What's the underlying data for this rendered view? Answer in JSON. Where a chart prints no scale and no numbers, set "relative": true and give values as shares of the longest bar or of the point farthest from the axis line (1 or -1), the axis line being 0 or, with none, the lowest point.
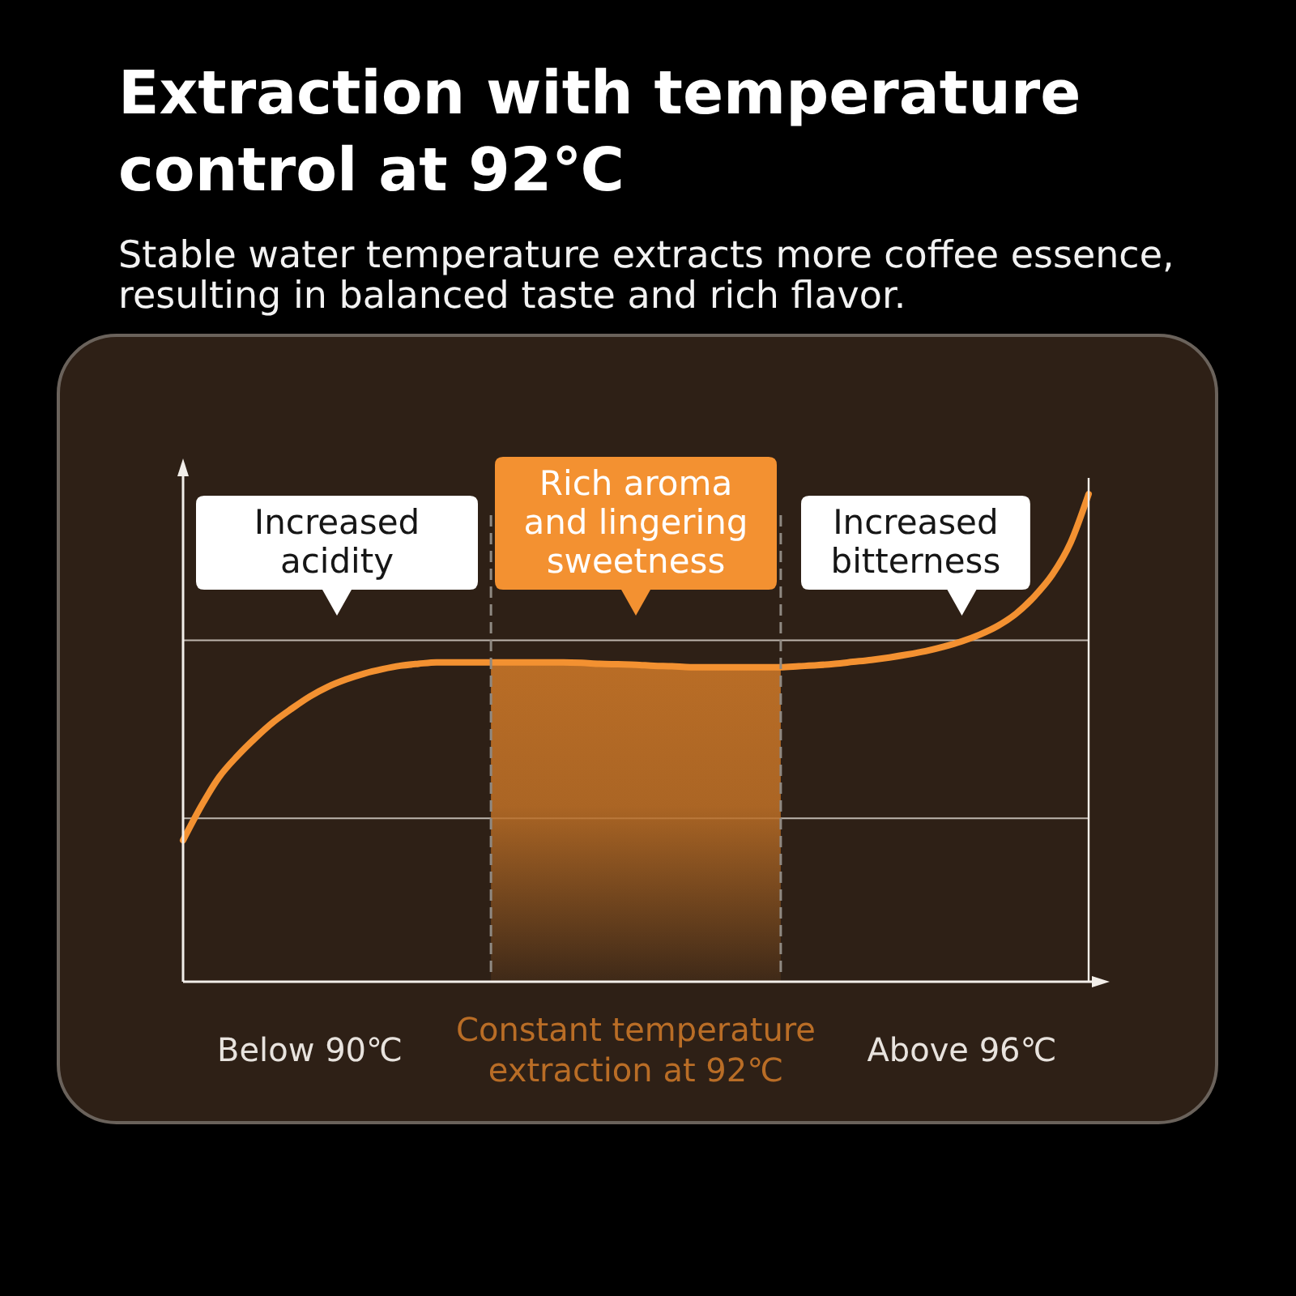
{
  "chart_data": {
    "type": "line",
    "title": "Extraction with temperature\ncontrol at 92℃",
    "subtitle": "Stable water temperature extracts more coffee essence,\nresulting in balanced taste and rich flavor.",
    "relative": true,
    "categories": [
      null,
      null,
      null,
      null,
      null,
      null,
      null,
      "Below 90℃",
      null,
      null,
      null,
      null,
      null,
      null,
      null,
      null,
      null,
      null,
      null,
      null,
      null,
      null,
      null,
      null,
      null,
      "Constant temperature\nextraction at 92℃",
      null,
      null,
      null,
      null,
      null,
      null,
      null,
      null,
      null,
      null,
      null,
      null,
      null,
      null,
      null,
      null,
      null,
      "Above 96℃",
      null,
      null,
      null,
      null,
      null,
      null,
      null
    ],
    "series": [
      {
        "type": "area",
        "color": "#b96d26",
        "values": [
          null,
          null,
          null,
          null,
          null,
          null,
          null,
          null,
          null,
          null,
          null,
          null,
          null,
          null,
          null,
          null,
          null,
          0.655,
          0.655,
          0.655,
          0.655,
          0.655,
          0.654,
          0.652,
          0.651,
          0.65,
          0.648,
          0.647,
          0.645,
          0.645,
          0.645,
          0.645,
          0.645,
          0.645,
          null,
          null,
          null,
          null,
          null,
          null,
          null,
          null,
          null,
          null,
          null,
          null,
          null,
          null,
          null,
          null,
          null
        ]
      },
      {
        "type": "line",
        "color": "#f39131",
        "values": [
          0.29,
          0.36,
          0.42,
          0.463,
          0.5,
          0.533,
          0.56,
          0.585,
          0.605,
          0.62,
          0.632,
          0.641,
          0.648,
          0.652,
          0.655,
          0.655,
          0.655,
          0.655,
          0.655,
          0.655,
          0.655,
          0.655,
          0.654,
          0.652,
          0.651,
          0.65,
          0.648,
          0.647,
          0.645,
          0.645,
          0.645,
          0.645,
          0.645,
          0.645,
          0.647,
          0.649,
          0.652,
          0.656,
          0.66,
          0.665,
          0.671,
          0.678,
          0.687,
          0.698,
          0.712,
          0.73,
          0.755,
          0.79,
          0.835,
          0.9,
          1
        ]
      }
    ],
    "ref_lines": [
      {
        "axis": "y",
        "value": 0.7,
        "color": "#bdb5ad"
      },
      {
        "axis": "y",
        "value": 0.335,
        "color": "#bdb5ad"
      }
    ],
    "annotations": [
      "Increased\nacidity",
      "Rich aroma\nand lingering\nsweetness",
      "Increased\nbitterness"
    ]
  }
}
